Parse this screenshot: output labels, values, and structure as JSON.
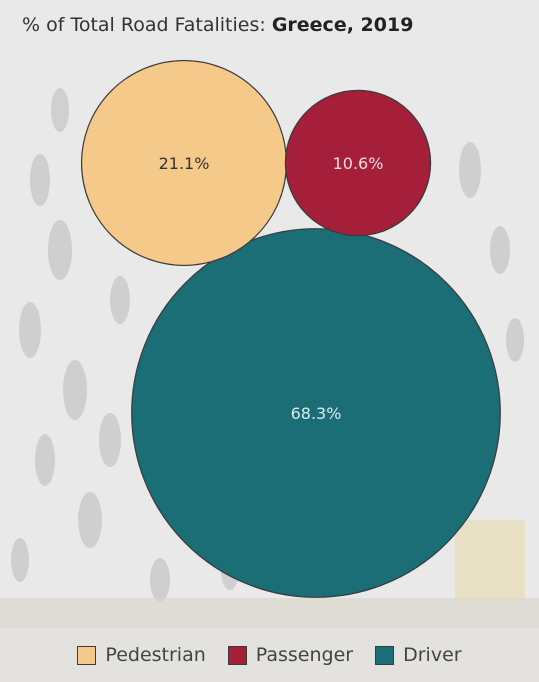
{
  "title": {
    "prefix": "% of Total Road Fatalities: ",
    "emphasis": "Greece, 2019"
  },
  "chart_data": {
    "type": "bubble",
    "title": "% of Total Road Fatalities: Greece, 2019",
    "unit": "%",
    "series": [
      {
        "name": "Pedestrian",
        "value": 21.1,
        "label": "21.1%",
        "color": "#f5c98a",
        "label_color": "#333333"
      },
      {
        "name": "Passenger",
        "value": 10.6,
        "label": "10.6%",
        "color": "#a51f3a",
        "label_color": "#f3dde0"
      },
      {
        "name": "Driver",
        "value": 68.3,
        "label": "68.3%",
        "color": "#1b6d76",
        "label_color": "#d9ecee"
      }
    ],
    "legend_position": "bottom"
  },
  "legend": {
    "items": [
      {
        "label": "Pedestrian",
        "color": "#f5c98a"
      },
      {
        "label": "Passenger",
        "color": "#a51f3a"
      },
      {
        "label": "Driver",
        "color": "#1b6d76"
      }
    ]
  },
  "colors": {
    "background": "#ececec",
    "bubble_stroke": "#3a3a3a"
  }
}
